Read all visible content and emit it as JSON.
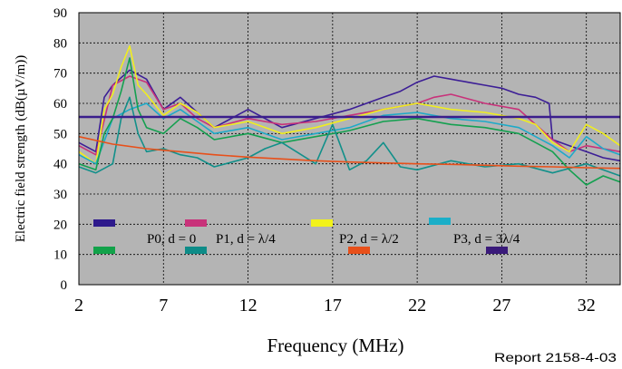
{
  "chart_data": {
    "type": "line",
    "xlabel": "Frequency (MHz)",
    "ylabel": "Electric field strength (dB(µV/m))",
    "xlim": [
      2,
      34
    ],
    "ylim": [
      0,
      90
    ],
    "xticks": [
      "2",
      "7",
      "12",
      "17",
      "22",
      "27",
      "32"
    ],
    "yticks": [
      "0",
      "10",
      "20",
      "30",
      "40",
      "50",
      "60",
      "70",
      "80",
      "90"
    ],
    "grid": true,
    "legend_position": "bottom-left",
    "report_label": "Report 2158-4-03",
    "legend": [
      {
        "label": "P0, d = 0",
        "colors": [
          "#2E1A8C",
          "#12A24A"
        ]
      },
      {
        "label": "P1, d = λ/4",
        "colors": [
          "#C8327A",
          "#0E8C88"
        ]
      },
      {
        "label": "P2, d = λ/2",
        "colors": [
          "#F2F21A",
          "#E8501A"
        ]
      },
      {
        "label": "P3, d = 3λ/4",
        "colors": [
          "#1AAEC8",
          "#3A1A7A"
        ]
      }
    ],
    "series": [
      {
        "color": "#3C1E96",
        "x": [
          2,
          3,
          3.5,
          4,
          5,
          6,
          7,
          8,
          9,
          10,
          12,
          14,
          16,
          18,
          20,
          21,
          22,
          23,
          24,
          25,
          26,
          27,
          28,
          29,
          29.8,
          30,
          31,
          32,
          33,
          34
        ],
        "y": [
          47,
          44,
          62,
          66,
          71,
          68,
          58,
          62,
          57,
          52,
          58,
          52,
          55,
          58,
          62,
          64,
          67,
          69,
          68,
          67,
          66,
          65,
          63,
          62,
          60,
          48,
          46,
          44,
          42,
          41
        ]
      },
      {
        "color": "#C8327A",
        "x": [
          2,
          3,
          4,
          5,
          6,
          7,
          8,
          9,
          10,
          12,
          14,
          16,
          18,
          20,
          22,
          23,
          24,
          26,
          28,
          30,
          31,
          32,
          33,
          34
        ],
        "y": [
          46,
          43,
          66,
          69,
          67,
          58,
          60,
          55,
          52,
          55,
          53,
          54,
          56,
          58,
          60,
          62,
          63,
          60,
          58,
          48,
          44,
          46,
          45,
          44
        ]
      },
      {
        "color": "#F0EE1E",
        "x": [
          2,
          3,
          3.5,
          4,
          4.5,
          5,
          5.5,
          6,
          7,
          8,
          9,
          10,
          12,
          14,
          16,
          18,
          20,
          22,
          24,
          26,
          28,
          29,
          30,
          31,
          32,
          33,
          34
        ],
        "y": [
          44,
          40,
          58,
          63,
          72,
          79,
          66,
          63,
          56,
          60,
          57,
          52,
          54,
          50,
          52,
          55,
          58,
          60,
          58,
          57,
          55,
          53,
          47,
          44,
          53,
          50,
          46
        ]
      },
      {
        "color": "#1EAAC8",
        "x": [
          2,
          3,
          4,
          5,
          6,
          7,
          8,
          9,
          10,
          12,
          14,
          16,
          18,
          20,
          22,
          24,
          26,
          28,
          30,
          31,
          32,
          33,
          34
        ],
        "y": [
          43,
          40,
          55,
          58,
          60,
          55,
          58,
          54,
          50,
          52,
          48,
          50,
          52,
          56,
          57,
          55,
          54,
          52,
          46,
          42,
          49,
          45,
          43
        ]
      },
      {
        "color": "#14A050",
        "x": [
          2,
          3,
          3.5,
          4,
          4.5,
          5,
          5.5,
          6,
          7,
          8,
          9,
          10,
          12,
          14,
          16,
          18,
          20,
          22,
          24,
          26,
          28,
          30,
          31,
          32,
          33,
          34
        ],
        "y": [
          40,
          38,
          50,
          55,
          64,
          75,
          58,
          52,
          50,
          55,
          52,
          48,
          50,
          47,
          49,
          51,
          54,
          55,
          53,
          52,
          50,
          44,
          38,
          33,
          36,
          34
        ]
      },
      {
        "color": "#12908A",
        "x": [
          2,
          3,
          4,
          4.5,
          5,
          5.5,
          6,
          7,
          8,
          9,
          10,
          12,
          13,
          14,
          16,
          17,
          18,
          19,
          20,
          21,
          22,
          24,
          26,
          28,
          30,
          32,
          34
        ],
        "y": [
          39,
          37,
          40,
          55,
          62,
          50,
          44,
          45,
          43,
          42,
          39,
          42,
          45,
          47,
          40,
          53,
          38,
          41,
          47,
          39,
          38,
          41,
          39,
          40,
          37,
          40,
          36
        ]
      },
      {
        "color": "#E8501A",
        "x": [
          2,
          4,
          6,
          8,
          10,
          12,
          14,
          16,
          18,
          20,
          22,
          24,
          26,
          28,
          30,
          32,
          34
        ],
        "y": [
          49,
          46.5,
          45,
          44,
          43,
          42.2,
          41.6,
          41,
          40.6,
          40.3,
          40,
          39.8,
          39.5,
          39.2,
          39,
          38.7,
          38.5
        ]
      },
      {
        "color": "#3A1E8C",
        "x": [
          2,
          34
        ],
        "y": [
          55.5,
          55.5
        ]
      }
    ]
  }
}
